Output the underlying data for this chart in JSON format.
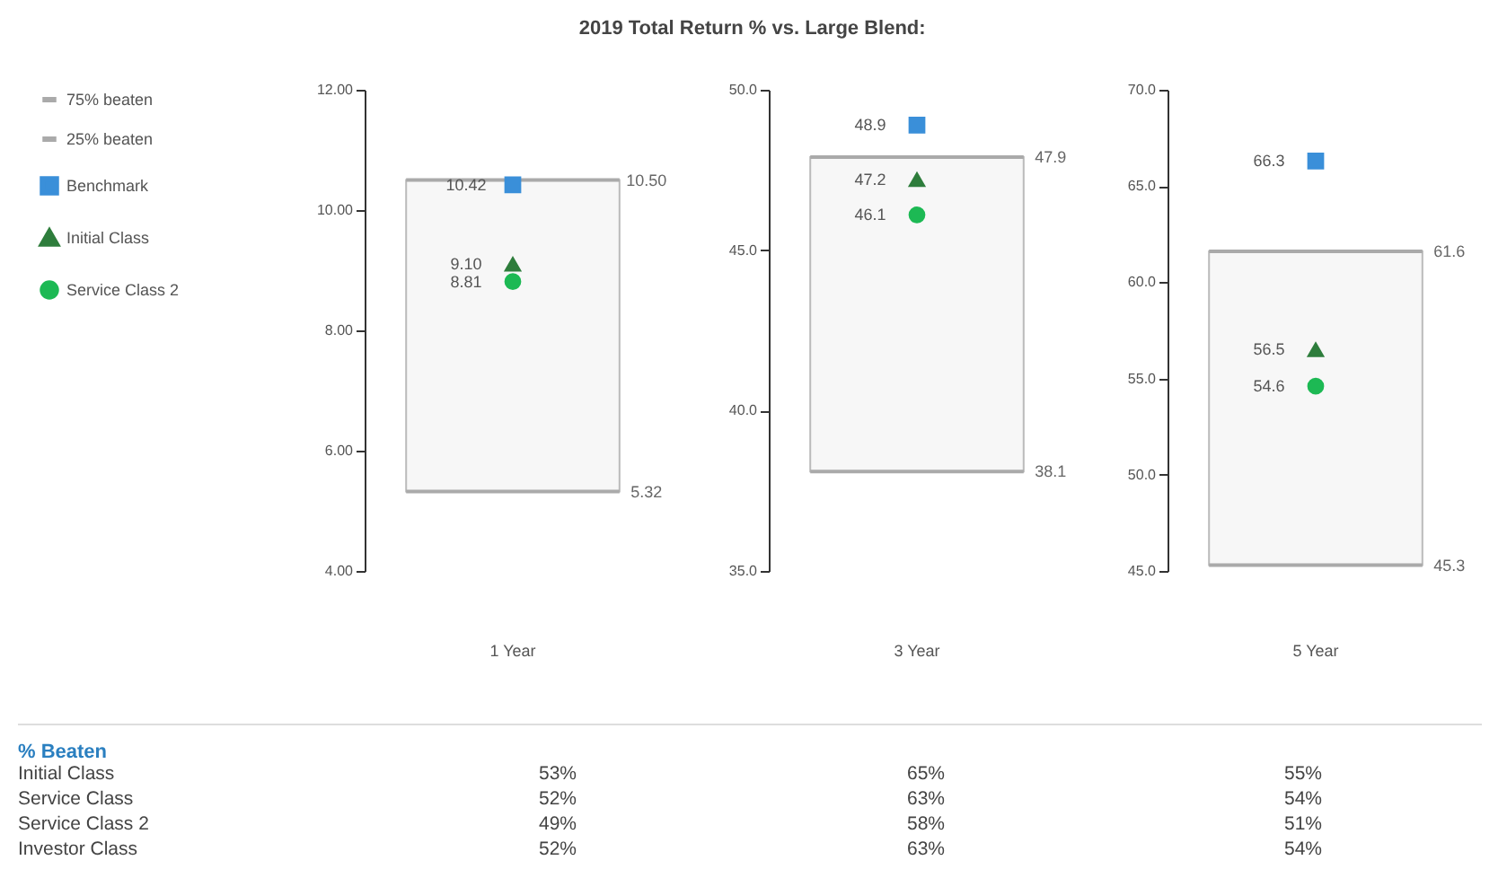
{
  "chart_data": [
    {
      "type": "scatter",
      "title": "2019 Total Return % vs. Large Blend:",
      "categories": [
        "1 Year"
      ],
      "ylim": [
        4,
        12
      ],
      "yticks": [
        {
          "value": 4,
          "label": "4.00"
        },
        {
          "value": 6,
          "label": "6.00"
        },
        {
          "value": 8,
          "label": "8.00"
        },
        {
          "value": 10,
          "label": "10.00"
        },
        {
          "value": 12,
          "label": "12.00"
        }
      ],
      "grid": false,
      "legend": "left",
      "annotations": [
        "75% beaten",
        "25% beaten"
      ],
      "bands": [
        {
          "axis": "y",
          "from": 5.32,
          "to": 10.5,
          "color": "#f7f7f7"
        }
      ],
      "ref_lines": [
        {
          "axis": "y",
          "value": 10.5,
          "label": "10.50",
          "color": "#aaaaaa"
        },
        {
          "axis": "y",
          "value": 5.32,
          "label": "5.32",
          "color": "#aaaaaa"
        }
      ],
      "series": [
        {
          "name": "Benchmark",
          "marker": "square",
          "color": "#3a8fd9",
          "values": [
            10.42
          ],
          "value_labels": [
            "10.42"
          ]
        },
        {
          "name": "Initial Class",
          "marker": "triangle",
          "color": "#2e7d3c",
          "values": [
            9.1
          ],
          "value_labels": [
            "9.10"
          ]
        },
        {
          "name": "Service Class 2",
          "marker": "circle",
          "color": "#1db954",
          "values": [
            8.81
          ],
          "value_labels": [
            "8.81"
          ]
        }
      ]
    },
    {
      "type": "scatter",
      "categories": [
        "3 Year"
      ],
      "ylim": [
        35,
        50
      ],
      "yticks": [
        {
          "value": 35,
          "label": "35.0"
        },
        {
          "value": 40,
          "label": "40.0"
        },
        {
          "value": 45,
          "label": "45.0"
        },
        {
          "value": 50,
          "label": "50.0"
        }
      ],
      "grid": false,
      "bands": [
        {
          "axis": "y",
          "from": 38.1,
          "to": 47.9,
          "color": "#f7f7f7"
        }
      ],
      "ref_lines": [
        {
          "axis": "y",
          "value": 47.9,
          "label": "47.9",
          "color": "#aaaaaa"
        },
        {
          "axis": "y",
          "value": 38.1,
          "label": "38.1",
          "color": "#aaaaaa"
        }
      ],
      "series": [
        {
          "marker": "square",
          "color": "#3a8fd9",
          "values": [
            48.9
          ],
          "value_labels": [
            "48.9"
          ]
        },
        {
          "marker": "triangle",
          "color": "#2e7d3c",
          "values": [
            47.2
          ],
          "value_labels": [
            "47.2"
          ]
        },
        {
          "marker": "circle",
          "color": "#1db954",
          "values": [
            46.1
          ],
          "value_labels": [
            "46.1"
          ]
        }
      ]
    },
    {
      "type": "scatter",
      "categories": [
        "5 Year"
      ],
      "ylim": [
        45,
        70
      ],
      "yticks": [
        {
          "value": 45,
          "label": "45.0"
        },
        {
          "value": 50,
          "label": "50.0"
        },
        {
          "value": 55,
          "label": "55.0"
        },
        {
          "value": 60,
          "label": "60.0"
        },
        {
          "value": 65,
          "label": "65.0"
        },
        {
          "value": 70,
          "label": "70.0"
        }
      ],
      "grid": false,
      "bands": [
        {
          "axis": "y",
          "from": 45.3,
          "to": 61.6,
          "color": "#f7f7f7"
        }
      ],
      "ref_lines": [
        {
          "axis": "y",
          "value": 61.6,
          "label": "61.6",
          "color": "#aaaaaa"
        },
        {
          "axis": "y",
          "value": 45.3,
          "label": "45.3",
          "color": "#aaaaaa"
        }
      ],
      "series": [
        {
          "marker": "square",
          "color": "#3a8fd9",
          "values": [
            66.3
          ],
          "value_labels": [
            "66.3"
          ]
        },
        {
          "marker": "triangle",
          "color": "#2e7d3c",
          "values": [
            56.5
          ],
          "value_labels": [
            "56.5"
          ]
        },
        {
          "marker": "circle",
          "color": "#1db954",
          "values": [
            54.6
          ],
          "value_labels": [
            "54.6"
          ]
        }
      ]
    },
    {
      "type": "other",
      "title": "% Beaten",
      "y_categories": [
        "Initial Class",
        "Service Class",
        "Service Class 2",
        "Investor Class"
      ],
      "cell_labels": [
        [
          "53%",
          "65%",
          "55%"
        ],
        [
          "52%",
          "63%",
          "54%"
        ],
        [
          "49%",
          "58%",
          "51%"
        ],
        [
          "52%",
          "63%",
          "54%"
        ]
      ]
    }
  ]
}
